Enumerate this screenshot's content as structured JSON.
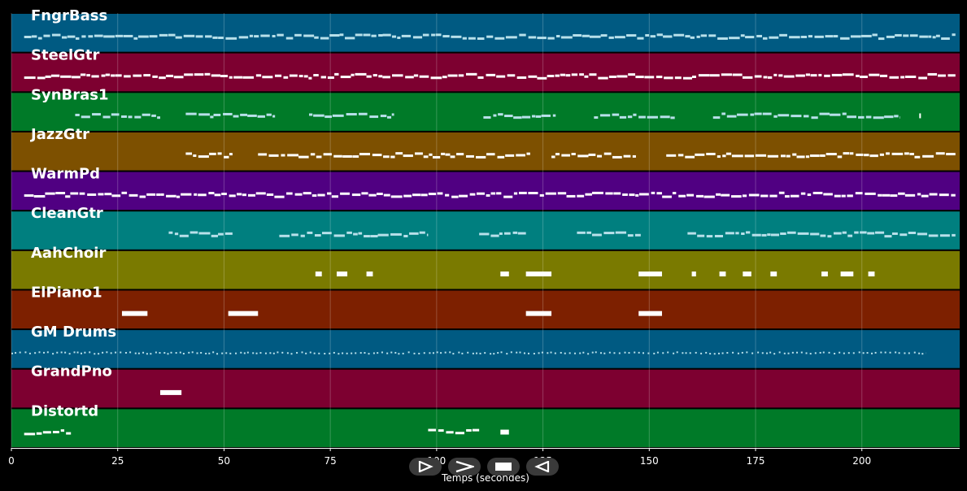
{
  "chart_data": {
    "type": "piano-roll",
    "xlabel": "Temps (secondes)",
    "xlim": [
      0,
      223
    ],
    "xticks": [
      0,
      25,
      50,
      75,
      100,
      125,
      150,
      175,
      200
    ],
    "grid": true,
    "tracks": [
      {
        "name": "FngrBass",
        "color": "#005a82",
        "segments": [
          [
            3,
            222
          ]
        ]
      },
      {
        "name": "SteelGtr",
        "color": "#7d0030",
        "segments": [
          [
            3,
            222
          ]
        ]
      },
      {
        "name": "SynBras1",
        "color": "#007a28",
        "segments": [
          [
            15,
            35
          ],
          [
            41,
            62
          ],
          [
            70,
            90
          ],
          [
            111,
            128
          ],
          [
            137,
            156
          ],
          [
            165,
            209
          ],
          [
            213.5,
            213.8
          ]
        ]
      },
      {
        "name": "JazzGtr",
        "color": "#7d5000",
        "segments": [
          [
            41,
            52
          ],
          [
            58,
            122
          ],
          [
            127,
            147
          ],
          [
            154,
            222
          ]
        ]
      },
      {
        "name": "WarmPd",
        "color": "#500082",
        "segments": [
          [
            3,
            222
          ]
        ]
      },
      {
        "name": "CleanGtr",
        "color": "#007f7f",
        "segments": [
          [
            37,
            52
          ],
          [
            63,
            98
          ],
          [
            110,
            121
          ],
          [
            133,
            148
          ],
          [
            159,
            222
          ]
        ]
      },
      {
        "name": "AahChoir",
        "color": "#7a7a00",
        "segments": [
          [
            71.5,
            73
          ],
          [
            76.5,
            79
          ],
          [
            83.5,
            85
          ],
          [
            115,
            117
          ],
          [
            121,
            127
          ],
          [
            147.5,
            153
          ],
          [
            160,
            161
          ],
          [
            166.5,
            168
          ],
          [
            172,
            174
          ],
          [
            178.5,
            180
          ],
          [
            190.5,
            192
          ],
          [
            195,
            198
          ],
          [
            201.5,
            203
          ]
        ]
      },
      {
        "name": "ElPiano1",
        "color": "#7d2000",
        "segments": [
          [
            26,
            32
          ],
          [
            51,
            58
          ],
          [
            121,
            127
          ],
          [
            147.5,
            153
          ]
        ]
      },
      {
        "name": "GM Drums",
        "color": "#005a82",
        "segments": [
          [
            0,
            215
          ]
        ]
      },
      {
        "name": "GrandPno",
        "color": "#7d0030",
        "segments": [
          [
            35,
            40
          ]
        ]
      },
      {
        "name": "Distortd",
        "color": "#007a28",
        "segments": [
          [
            3,
            14
          ],
          [
            98,
            110
          ],
          [
            115,
            117
          ]
        ]
      }
    ]
  },
  "controls": [
    {
      "name": "play-button",
      "icon": "play-icon"
    },
    {
      "name": "fast-forward-button",
      "icon": "fast-forward-icon"
    },
    {
      "name": "stop-button",
      "icon": "stop-icon"
    },
    {
      "name": "rewind-button",
      "icon": "rewind-icon"
    }
  ]
}
